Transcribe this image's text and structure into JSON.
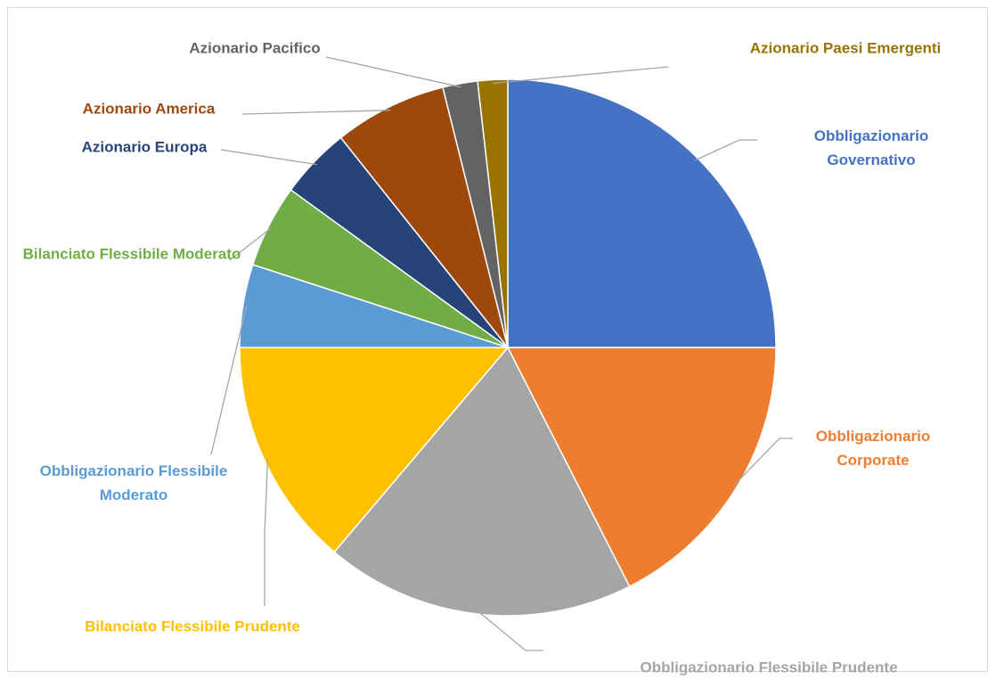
{
  "chart_data": {
    "type": "pie",
    "categories": [
      "Obbligazionario Governativo",
      "Obbligazionario Corporate",
      "Obbligazionario Flessibile Prudente",
      "Bilanciato Flessibile Prudente",
      "Obbligazionario Flessibile Moderato",
      "Bilanciato Flessibile Moderato",
      "Azionario Europa",
      "Azionario America",
      "Azionario Pacifico",
      "Azionario Paesi Emergenti"
    ],
    "values": [
      25,
      17.5,
      18.7,
      13.8,
      5,
      5,
      4.3,
      6.8,
      2.1,
      1.8
    ],
    "colors": [
      "#4472c4",
      "#ed7d31",
      "#a5a5a5",
      "#ffc000",
      "#5b9bd5",
      "#70ad47",
      "#264478",
      "#9e480e",
      "#636363",
      "#997300"
    ]
  }
}
